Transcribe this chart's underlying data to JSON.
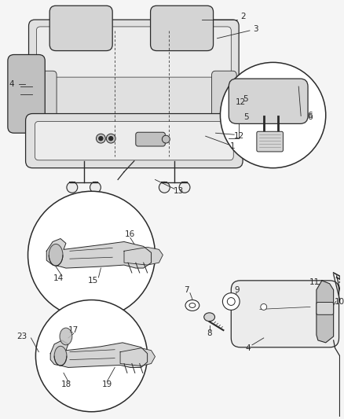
{
  "bg_color": "#f5f5f5",
  "lc": "#2a2a2a",
  "fc_seat": "#e0e0e0",
  "fc_light": "#ececec",
  "fc_dark": "#c0c0c0",
  "fc_med": "#d4d4d4"
}
